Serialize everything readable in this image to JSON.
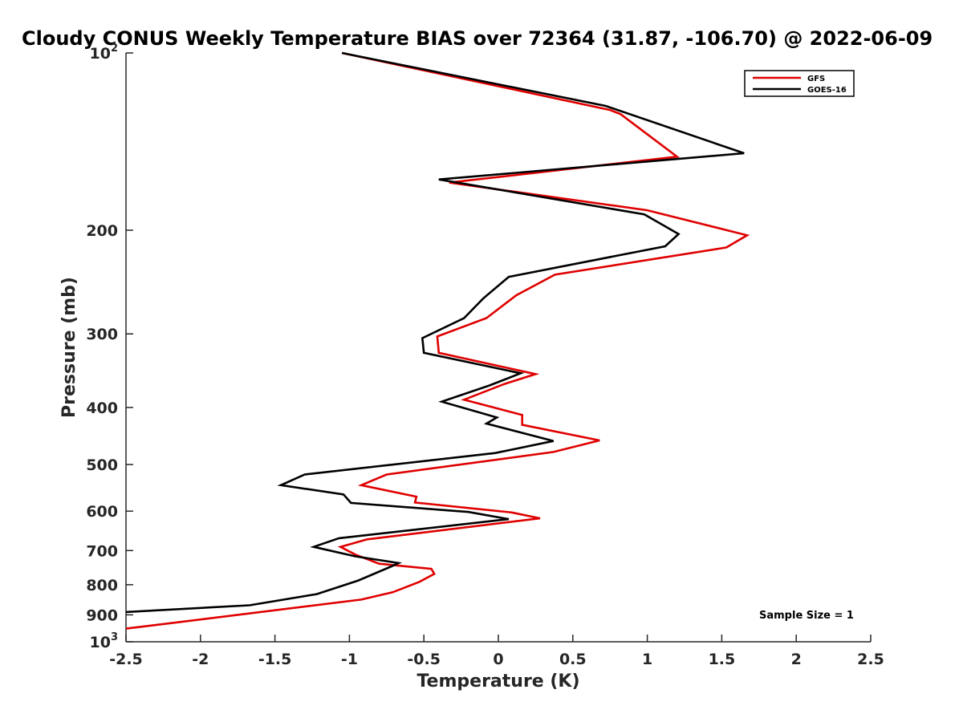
{
  "chart_data": {
    "type": "line",
    "title": "Cloudy CONUS Weekly Temperature BIAS over 72364 (31.87, -106.70) @ 2022-06-09",
    "xlabel": "Temperature (K)",
    "ylabel": "Pressure (mb)",
    "xlim": [
      -2.5,
      2.5
    ],
    "ylim": [
      100,
      1000
    ],
    "y_scale": "log",
    "y_reversed": true,
    "grid": false,
    "legend_position": "top-right",
    "x_ticks": [
      "-2.5",
      "-2",
      "-1.5",
      "-1",
      "-0.5",
      "0",
      "0.5",
      "1",
      "1.5",
      "2",
      "2.5"
    ],
    "x_tick_values": [
      -2.5,
      -2,
      -1.5,
      -1,
      -0.5,
      0,
      0.5,
      1,
      1.5,
      2,
      2.5
    ],
    "y_ticks": [
      {
        "value": 100,
        "label": "10",
        "sup": "2"
      },
      {
        "value": 200,
        "label": "200",
        "sup": ""
      },
      {
        "value": 300,
        "label": "300",
        "sup": ""
      },
      {
        "value": 400,
        "label": "400",
        "sup": ""
      },
      {
        "value": 500,
        "label": "500",
        "sup": ""
      },
      {
        "value": 600,
        "label": "600",
        "sup": ""
      },
      {
        "value": 700,
        "label": "700",
        "sup": ""
      },
      {
        "value": 800,
        "label": "800",
        "sup": ""
      },
      {
        "value": 900,
        "label": "900",
        "sup": ""
      },
      {
        "value": 1000,
        "label": "10",
        "sup": "3"
      }
    ],
    "annotation": "Sample Size = 1",
    "series": [
      {
        "name": "GFS",
        "color": "#e00000",
        "points": [
          [
            -1.05,
            100
          ],
          [
            0.75,
            125
          ],
          [
            0.82,
            127
          ],
          [
            1.2,
            150
          ],
          [
            -0.33,
            166
          ],
          [
            1.0,
            185
          ],
          [
            1.67,
            204
          ],
          [
            1.53,
            214
          ],
          [
            0.38,
            238
          ],
          [
            0.12,
            258
          ],
          [
            -0.08,
            282
          ],
          [
            -0.41,
            303
          ],
          [
            -0.4,
            323
          ],
          [
            0.25,
            351
          ],
          [
            0.04,
            365
          ],
          [
            -0.23,
            388
          ],
          [
            0.16,
            412
          ],
          [
            0.16,
            428
          ],
          [
            0.68,
            455
          ],
          [
            0.37,
            476
          ],
          [
            -0.75,
            520
          ],
          [
            -0.92,
            542
          ],
          [
            -0.55,
            567
          ],
          [
            -0.56,
            580
          ],
          [
            0.09,
            603
          ],
          [
            0.28,
            617
          ],
          [
            -0.88,
            670
          ],
          [
            -1.06,
            690
          ],
          [
            -0.96,
            711
          ],
          [
            -0.8,
            737
          ],
          [
            -0.45,
            752
          ],
          [
            -0.43,
            767
          ],
          [
            -0.53,
            791
          ],
          [
            -0.71,
            824
          ],
          [
            -0.92,
            848
          ],
          [
            -2.25,
            933
          ],
          [
            -2.5,
            950
          ]
        ]
      },
      {
        "name": "GOES-16",
        "color": "#000000",
        "points": [
          [
            -1.05,
            100
          ],
          [
            0.72,
            123
          ],
          [
            1.65,
            148
          ],
          [
            -0.4,
            164
          ],
          [
            0.98,
            188
          ],
          [
            1.21,
            203
          ],
          [
            1.12,
            213
          ],
          [
            0.07,
            240
          ],
          [
            -0.1,
            261
          ],
          [
            -0.23,
            282
          ],
          [
            -0.51,
            305
          ],
          [
            -0.5,
            323
          ],
          [
            0.15,
            350
          ],
          [
            -0.06,
            367
          ],
          [
            -0.38,
            391
          ],
          [
            -0.01,
            416
          ],
          [
            -0.08,
            426
          ],
          [
            0.37,
            456
          ],
          [
            -0.02,
            478
          ],
          [
            -1.3,
            520
          ],
          [
            -1.46,
            542
          ],
          [
            -1.04,
            562
          ],
          [
            -0.99,
            581
          ],
          [
            -0.2,
            602
          ],
          [
            0.07,
            619
          ],
          [
            -1.07,
            667
          ],
          [
            -1.24,
            690
          ],
          [
            -0.96,
            716
          ],
          [
            -0.67,
            735
          ],
          [
            -0.73,
            747
          ],
          [
            -0.94,
            787
          ],
          [
            -1.22,
            830
          ],
          [
            -1.67,
            867
          ],
          [
            -2.5,
            890
          ]
        ]
      }
    ]
  }
}
